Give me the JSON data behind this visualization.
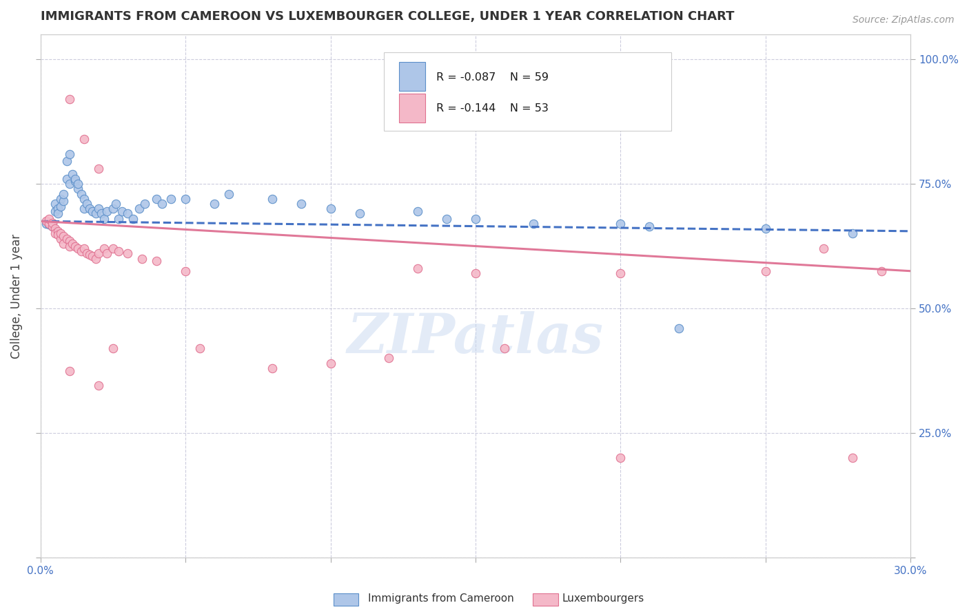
{
  "title": "IMMIGRANTS FROM CAMEROON VS LUXEMBOURGER COLLEGE, UNDER 1 YEAR CORRELATION CHART",
  "source": "Source: ZipAtlas.com",
  "ylabel": "College, Under 1 year",
  "xmin": 0.0,
  "xmax": 0.3,
  "ymin": 0.0,
  "ymax": 1.05,
  "xticks": [
    0.0,
    0.05,
    0.1,
    0.15,
    0.2,
    0.25,
    0.3
  ],
  "yticks": [
    0.0,
    0.25,
    0.5,
    0.75,
    1.0
  ],
  "right_ytick_labels": [
    "100.0%",
    "75.0%",
    "50.0%",
    "25.0%",
    ""
  ],
  "right_ytick_vals": [
    1.0,
    0.75,
    0.5,
    0.25,
    0.0
  ],
  "blue_color": "#aec6e8",
  "pink_color": "#f4b8c8",
  "blue_edge_color": "#5b8fc9",
  "pink_edge_color": "#e07090",
  "blue_line_color": "#4472c4",
  "pink_line_color": "#e07898",
  "R_blue": -0.087,
  "N_blue": 59,
  "R_pink": -0.144,
  "N_pink": 53,
  "blue_scatter": [
    [
      0.002,
      0.67
    ],
    [
      0.003,
      0.668
    ],
    [
      0.004,
      0.665
    ],
    [
      0.004,
      0.672
    ],
    [
      0.005,
      0.71
    ],
    [
      0.005,
      0.695
    ],
    [
      0.006,
      0.7
    ],
    [
      0.006,
      0.69
    ],
    [
      0.007,
      0.72
    ],
    [
      0.007,
      0.705
    ],
    [
      0.008,
      0.715
    ],
    [
      0.008,
      0.73
    ],
    [
      0.009,
      0.76
    ],
    [
      0.009,
      0.795
    ],
    [
      0.01,
      0.81
    ],
    [
      0.01,
      0.75
    ],
    [
      0.011,
      0.77
    ],
    [
      0.012,
      0.755
    ],
    [
      0.012,
      0.76
    ],
    [
      0.013,
      0.74
    ],
    [
      0.013,
      0.75
    ],
    [
      0.014,
      0.73
    ],
    [
      0.015,
      0.72
    ],
    [
      0.015,
      0.7
    ],
    [
      0.016,
      0.71
    ],
    [
      0.017,
      0.7
    ],
    [
      0.018,
      0.695
    ],
    [
      0.019,
      0.69
    ],
    [
      0.02,
      0.7
    ],
    [
      0.021,
      0.69
    ],
    [
      0.022,
      0.68
    ],
    [
      0.023,
      0.695
    ],
    [
      0.025,
      0.7
    ],
    [
      0.026,
      0.71
    ],
    [
      0.027,
      0.68
    ],
    [
      0.028,
      0.695
    ],
    [
      0.03,
      0.69
    ],
    [
      0.032,
      0.68
    ],
    [
      0.034,
      0.7
    ],
    [
      0.036,
      0.71
    ],
    [
      0.04,
      0.72
    ],
    [
      0.042,
      0.71
    ],
    [
      0.045,
      0.72
    ],
    [
      0.05,
      0.72
    ],
    [
      0.06,
      0.71
    ],
    [
      0.065,
      0.73
    ],
    [
      0.08,
      0.72
    ],
    [
      0.09,
      0.71
    ],
    [
      0.1,
      0.7
    ],
    [
      0.11,
      0.69
    ],
    [
      0.13,
      0.695
    ],
    [
      0.14,
      0.68
    ],
    [
      0.15,
      0.68
    ],
    [
      0.17,
      0.67
    ],
    [
      0.2,
      0.67
    ],
    [
      0.21,
      0.665
    ],
    [
      0.22,
      0.46
    ],
    [
      0.25,
      0.66
    ],
    [
      0.28,
      0.65
    ]
  ],
  "pink_scatter": [
    [
      0.002,
      0.675
    ],
    [
      0.003,
      0.67
    ],
    [
      0.003,
      0.68
    ],
    [
      0.004,
      0.665
    ],
    [
      0.004,
      0.672
    ],
    [
      0.005,
      0.66
    ],
    [
      0.005,
      0.65
    ],
    [
      0.006,
      0.655
    ],
    [
      0.006,
      0.648
    ],
    [
      0.007,
      0.64
    ],
    [
      0.007,
      0.65
    ],
    [
      0.008,
      0.645
    ],
    [
      0.008,
      0.63
    ],
    [
      0.009,
      0.64
    ],
    [
      0.01,
      0.635
    ],
    [
      0.01,
      0.625
    ],
    [
      0.011,
      0.63
    ],
    [
      0.012,
      0.625
    ],
    [
      0.013,
      0.62
    ],
    [
      0.014,
      0.615
    ],
    [
      0.015,
      0.62
    ],
    [
      0.016,
      0.61
    ],
    [
      0.017,
      0.608
    ],
    [
      0.018,
      0.605
    ],
    [
      0.019,
      0.6
    ],
    [
      0.02,
      0.61
    ],
    [
      0.022,
      0.62
    ],
    [
      0.023,
      0.61
    ],
    [
      0.025,
      0.62
    ],
    [
      0.027,
      0.615
    ],
    [
      0.03,
      0.61
    ],
    [
      0.035,
      0.6
    ],
    [
      0.04,
      0.595
    ],
    [
      0.05,
      0.575
    ],
    [
      0.055,
      0.42
    ],
    [
      0.01,
      0.92
    ],
    [
      0.015,
      0.84
    ],
    [
      0.02,
      0.78
    ],
    [
      0.01,
      0.375
    ],
    [
      0.02,
      0.345
    ],
    [
      0.025,
      0.42
    ],
    [
      0.08,
      0.38
    ],
    [
      0.1,
      0.39
    ],
    [
      0.12,
      0.4
    ],
    [
      0.13,
      0.58
    ],
    [
      0.15,
      0.57
    ],
    [
      0.16,
      0.42
    ],
    [
      0.2,
      0.57
    ],
    [
      0.2,
      0.2
    ],
    [
      0.25,
      0.575
    ],
    [
      0.27,
      0.62
    ],
    [
      0.28,
      0.2
    ],
    [
      0.29,
      0.575
    ]
  ],
  "watermark": "ZIPatlas",
  "background_color": "#ffffff",
  "grid_color": "#ccccdd"
}
